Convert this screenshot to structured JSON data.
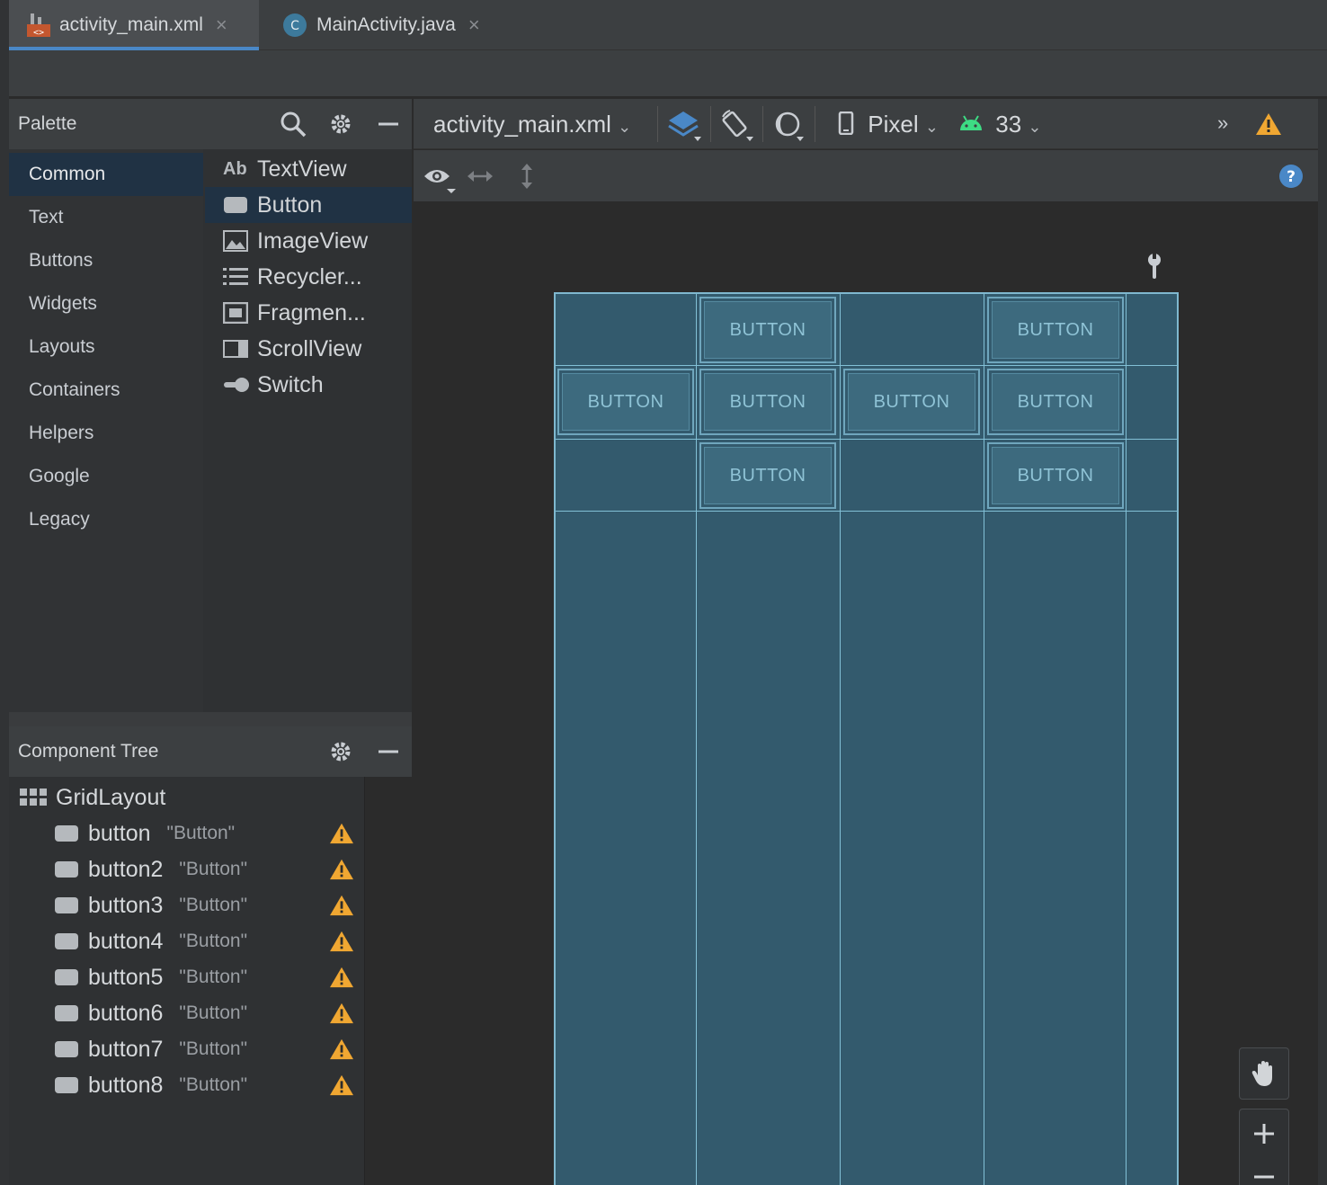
{
  "tabs": [
    {
      "label": "activity_main.xml",
      "icon": "xml-layout-icon",
      "active": true
    },
    {
      "label": "MainActivity.java",
      "icon": "java-class-icon",
      "active": false
    }
  ],
  "palette": {
    "title": "Palette",
    "categories": [
      "Common",
      "Text",
      "Buttons",
      "Widgets",
      "Layouts",
      "Containers",
      "Helpers",
      "Google",
      "Legacy"
    ],
    "selected_category": "Common",
    "items": [
      {
        "label": "TextView",
        "icon": "Ab"
      },
      {
        "label": "Button",
        "icon": "button-icon"
      },
      {
        "label": "ImageView",
        "icon": "image-icon"
      },
      {
        "label": "Recycler...",
        "icon": "list-icon"
      },
      {
        "label": "Fragmen...",
        "icon": "fragment-icon"
      },
      {
        "label": "ScrollView",
        "icon": "scroll-icon"
      },
      {
        "label": "Switch",
        "icon": "switch-icon"
      }
    ],
    "selected_item": "Button"
  },
  "component_tree": {
    "title": "Component Tree",
    "root": "GridLayout",
    "children": [
      {
        "id": "button",
        "text": "\"Button\""
      },
      {
        "id": "button2",
        "text": "\"Button\""
      },
      {
        "id": "button3",
        "text": "\"Button\""
      },
      {
        "id": "button4",
        "text": "\"Button\""
      },
      {
        "id": "button5",
        "text": "\"Button\""
      },
      {
        "id": "button6",
        "text": "\"Button\""
      },
      {
        "id": "button7",
        "text": "\"Button\""
      },
      {
        "id": "button8",
        "text": "\"Button\""
      }
    ]
  },
  "design_toolbar": {
    "file": "activity_main.xml",
    "device": "Pixel",
    "api_level": "33"
  },
  "canvas": {
    "button_label": "BUTTON"
  },
  "colors": {
    "accent": "#4a88c7",
    "warning": "#f0a732",
    "blueprint": "#335a6d",
    "android_green": "#3ddc84"
  }
}
